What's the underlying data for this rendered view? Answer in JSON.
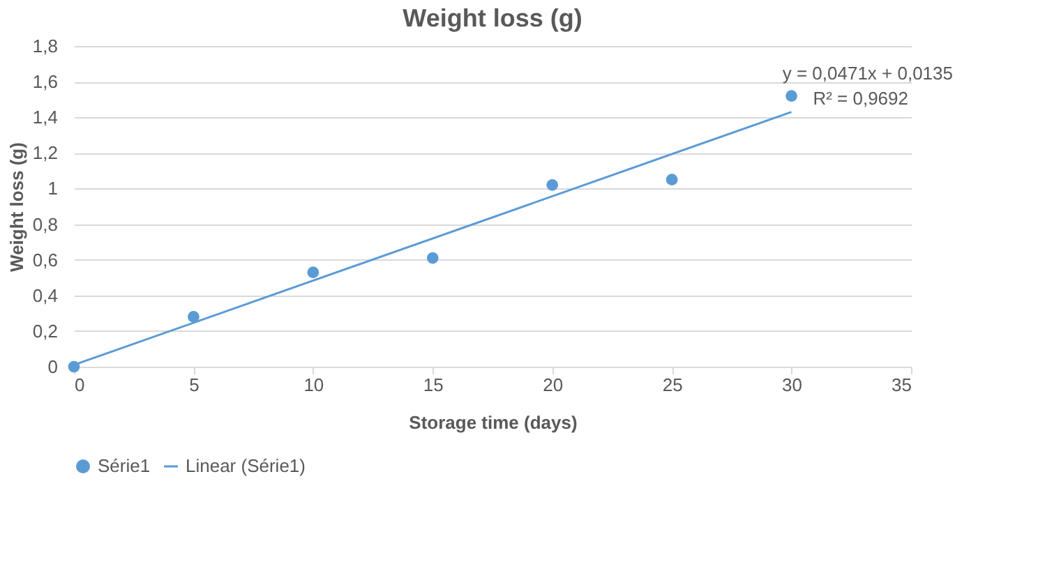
{
  "chart_data": {
    "type": "scatter",
    "title": "Weight loss (g)",
    "xlabel": "Storage time (days)",
    "ylabel": "Weight loss (g)",
    "x": [
      0,
      5,
      10,
      15,
      20,
      25,
      30
    ],
    "series": [
      {
        "name": "Série1",
        "color": "#5b9bd5",
        "values": [
          0,
          0.28,
          0.53,
          0.61,
          1.02,
          1.05,
          1.52
        ]
      },
      {
        "name": "Linear (Série1)",
        "color": "#5b9bd5",
        "type": "line",
        "marker": "none",
        "x": [
          0,
          30
        ],
        "values": [
          0.01,
          1.43
        ]
      }
    ],
    "xlim": [
      0,
      35
    ],
    "xticks": [
      0,
      5,
      10,
      15,
      20,
      25,
      30,
      35
    ],
    "ylim": [
      0,
      1.8
    ],
    "yticks": [
      0,
      {
        "value": 0.2,
        "label": "0,2"
      },
      {
        "value": 0.4,
        "label": "0,4"
      },
      {
        "value": 0.6,
        "label": "0,6"
      },
      {
        "value": 0.8,
        "label": "0,8"
      },
      1,
      {
        "value": 1.2,
        "label": "1,2"
      },
      {
        "value": 1.4,
        "label": "1,4"
      },
      {
        "value": 1.6,
        "label": "1,6"
      },
      {
        "value": 1.8,
        "label": "1,8"
      }
    ],
    "annotations": [
      "y = 0,0471x + 0,0135",
      "R² = 0,9692"
    ],
    "grid": "y",
    "legend": "bottom",
    "marker": "circle",
    "line_style": "solid"
  }
}
